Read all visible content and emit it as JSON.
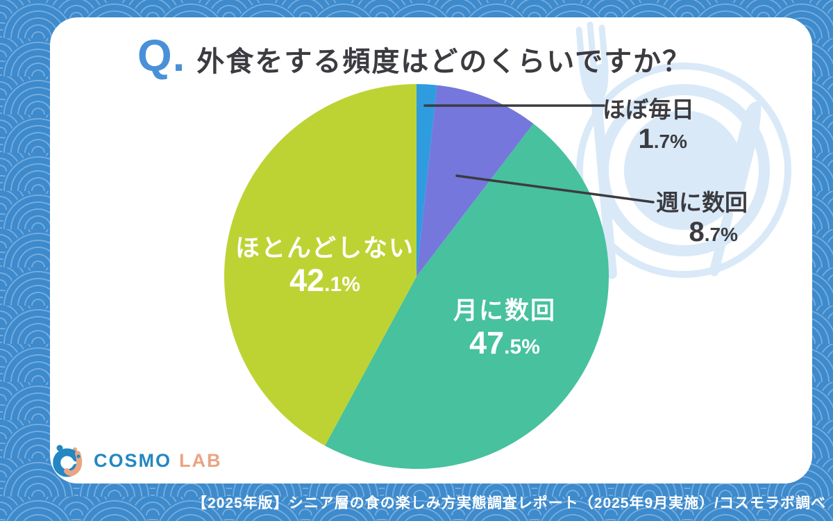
{
  "title": {
    "prefix": "Q.",
    "text": "外食をする頻度はどのくらいですか？"
  },
  "chart_data": {
    "type": "pie",
    "title": "外食をする頻度はどのくらいですか？",
    "unit": "%",
    "start_angle_deg": 0,
    "direction": "clockwise",
    "legend": "none",
    "slices": [
      {
        "label": "ほぼ毎日",
        "value": 1.7,
        "color": "#2f9ce0",
        "label_placement": "outside"
      },
      {
        "label": "週に数回",
        "value": 8.7,
        "color": "#7577dc",
        "label_placement": "outside"
      },
      {
        "label": "月に数回",
        "value": 47.5,
        "color": "#47c19e",
        "label_placement": "inside"
      },
      {
        "label": "ほとんどしない",
        "value": 42.1,
        "color": "#bdd334",
        "label_placement": "inside"
      }
    ]
  },
  "logo": {
    "cosmo": "COSMO",
    "lab": "LAB"
  },
  "footer": {
    "text": "【2025年版】シニア層の食の楽しみ方実態調査レポート（2025年9月実施）/コスモラボ調べ"
  },
  "colors": {
    "frame_bg": "#3d8acc",
    "frame_line": "#74abdc",
    "card_bg": "#ffffff",
    "title_q": "#4a90d9",
    "text_dark": "#3b3b40",
    "label_light": "#ffffff",
    "leader_line": "#3b3b40",
    "decor": "#d9e9f8",
    "logo_blue": "#2387c2",
    "logo_orange": "#e9a583"
  }
}
